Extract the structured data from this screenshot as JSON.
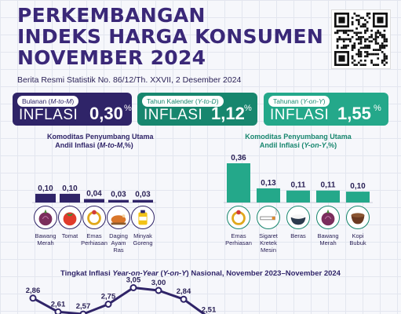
{
  "title": {
    "line1": "PERKEMBANGAN",
    "line2": "INDEKS HARGA KONSUMEN",
    "line3": "NOVEMBER 2024"
  },
  "subtitle": "Berita Resmi Statistik No. 86/12/Th. XXVII, 2 Desember 2024",
  "qr_icon": "qr-code-icon",
  "cards": [
    {
      "pill_prefix": "Bulanan (",
      "pill_italic": "M-to-M",
      "pill_suffix": ")",
      "label": "INFLASI",
      "value": "0,30",
      "unit": "%",
      "color": "#2f2468"
    },
    {
      "pill_prefix": "Tahun Kalender (",
      "pill_italic": "Y-to-D",
      "pill_suffix": ")",
      "label": "INFLASI",
      "value": "1,12",
      "unit": "%",
      "color": "#17866e"
    },
    {
      "pill_prefix": "Tahunan (",
      "pill_italic": "Y-on-Y",
      "pill_suffix": ")",
      "label": "INFLASI",
      "value": "1,55",
      "unit": "%",
      "color": "#24a88a"
    }
  ],
  "left_section": {
    "title_line1": "Komoditas Penyumbang Utama",
    "title_line2_prefix": "Andil Inflasi (",
    "title_line2_italic": "M-to-M",
    "title_line2_suffix": ",%)"
  },
  "right_section": {
    "title_line1": "Komoditas Penyumbang Utama",
    "title_line2_prefix": "Andil Inflasi (",
    "title_line2_italic": "Y-on-Y",
    "title_line2_suffix": ",%)"
  },
  "bottom_title": {
    "prefix": "Tingkat Inflasi ",
    "italic1": "Year-on-Year",
    "mid": " (",
    "italic2": "Y-on-Y",
    "suffix": ") Nasional, November 2023–November 2024"
  },
  "chart_data": [
    {
      "type": "bar",
      "categories": [
        "Bawang Merah",
        "Tomat",
        "Emas Perhiasan",
        "Daging Ayam Ras",
        "Minyak Goreng"
      ],
      "values": [
        0.1,
        0.1,
        0.04,
        0.03,
        0.03
      ],
      "labels": [
        "0,10",
        "0,10",
        "0,04",
        "0,03",
        "0,03"
      ],
      "icons": [
        "onion-icon",
        "tomato-icon",
        "gold-jewelry-icon",
        "chicken-icon",
        "cooking-oil-icon"
      ],
      "color": "#2f2468",
      "ylim": [
        0,
        0.36
      ]
    },
    {
      "type": "bar",
      "categories": [
        "Emas Perhiasan",
        "Sigaret Kretek Mesin",
        "Beras",
        "Bawang Merah",
        "Kopi Bubuk"
      ],
      "values": [
        0.36,
        0.13,
        0.11,
        0.11,
        0.1
      ],
      "labels": [
        "0,36",
        "0,13",
        "0,11",
        "0,11",
        "0,10"
      ],
      "icons": [
        "gold-jewelry-icon",
        "cigarette-icon",
        "rice-bowl-icon",
        "onion-icon",
        "coffee-icon"
      ],
      "color": "#24a88a",
      "ylim": [
        0,
        0.36
      ]
    },
    {
      "type": "line",
      "values": [
        2.86,
        2.61,
        2.57,
        2.75,
        3.05,
        3.0,
        2.84,
        2.51
      ],
      "labels": [
        "2,86",
        "2,61",
        "2,57",
        "2,75",
        "3,05",
        "3,00",
        "2,84",
        "2,51"
      ],
      "color": "#2f2468"
    }
  ]
}
